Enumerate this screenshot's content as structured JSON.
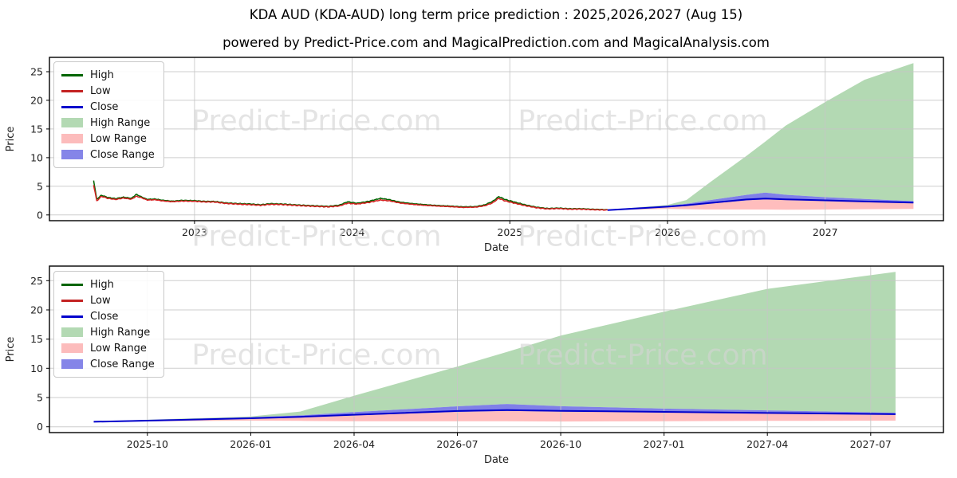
{
  "page": {
    "title": "KDA AUD (KDA-AUD) long term price prediction : 2025,2026,2027 (Aug 15)",
    "subtitle": "powered by Predict-Price.com and MagicalPrediction.com and MagicalAnalysis.com",
    "watermark": "Predict-Price.com"
  },
  "legend": {
    "items": [
      {
        "label": "High",
        "kind": "line",
        "color": "#006400"
      },
      {
        "label": "Low",
        "kind": "line",
        "color": "#c32222"
      },
      {
        "label": "Close",
        "kind": "line",
        "color": "#0000cc"
      },
      {
        "label": "High Range",
        "kind": "patch",
        "color": "#b3d9b3"
      },
      {
        "label": "Low Range",
        "kind": "patch",
        "color": "#fcbcbc"
      },
      {
        "label": "Close Range",
        "kind": "patch",
        "color": "#8585e8"
      }
    ]
  },
  "chart_data": {
    "colors": {
      "high_line": "#006400",
      "low_line": "#d42020",
      "close_line": "#0000cc",
      "high_range": "#b3d9b3",
      "low_range": "#ffbdbd",
      "close_range": "#8080e8",
      "grid": "#c6c6c6",
      "spine": "#000000",
      "tick_text": "#1f1f1f"
    },
    "history": {
      "t": [
        2022.36,
        2022.38,
        2022.41,
        2022.45,
        2022.5,
        2022.55,
        2022.6,
        2022.63,
        2022.66,
        2022.7,
        2022.75,
        2022.8,
        2022.86,
        2022.92,
        2023.0,
        2023.06,
        2023.13,
        2023.2,
        2023.28,
        2023.35,
        2023.42,
        2023.48,
        2023.55,
        2023.62,
        2023.7,
        2023.78,
        2023.85,
        2023.92,
        2023.97,
        2024.03,
        2024.1,
        2024.18,
        2024.24,
        2024.3,
        2024.38,
        2024.46,
        2024.54,
        2024.62,
        2024.7,
        2024.78,
        2024.84,
        2024.89,
        2024.93,
        2024.97,
        2025.03,
        2025.1,
        2025.17,
        2025.24,
        2025.31,
        2025.38,
        2025.45,
        2025.52,
        2025.58,
        2025.62
      ],
      "low": [
        5.3,
        2.45,
        3.25,
        2.9,
        2.7,
        2.95,
        2.75,
        3.25,
        3.05,
        2.6,
        2.65,
        2.45,
        2.3,
        2.42,
        2.38,
        2.28,
        2.25,
        2.0,
        1.88,
        1.8,
        1.68,
        1.85,
        1.82,
        1.7,
        1.58,
        1.48,
        1.4,
        1.58,
        2.05,
        1.9,
        2.15,
        2.6,
        2.45,
        2.1,
        1.85,
        1.68,
        1.55,
        1.45,
        1.32,
        1.35,
        1.6,
        2.1,
        2.9,
        2.45,
        2.05,
        1.6,
        1.25,
        1.05,
        1.12,
        1.0,
        1.02,
        0.92,
        0.88,
        0.85
      ],
      "high": [
        6.1,
        2.75,
        3.45,
        3.05,
        2.85,
        3.1,
        2.9,
        3.6,
        3.2,
        2.72,
        2.78,
        2.56,
        2.4,
        2.55,
        2.5,
        2.38,
        2.35,
        2.1,
        1.98,
        1.92,
        1.78,
        1.97,
        1.92,
        1.8,
        1.68,
        1.58,
        1.5,
        1.72,
        2.3,
        2.05,
        2.35,
        2.9,
        2.65,
        2.25,
        1.98,
        1.8,
        1.65,
        1.55,
        1.42,
        1.45,
        1.75,
        2.35,
        3.2,
        2.7,
        2.25,
        1.75,
        1.35,
        1.13,
        1.2,
        1.08,
        1.1,
        1.0,
        0.95,
        0.9
      ]
    },
    "forecast": {
      "t": [
        2025.62,
        2025.75,
        2026.0,
        2026.12,
        2026.25,
        2026.5,
        2026.62,
        2026.75,
        2027.0,
        2027.25,
        2027.56
      ],
      "close": [
        0.85,
        1.05,
        1.45,
        1.7,
        2.05,
        2.7,
        2.85,
        2.72,
        2.55,
        2.35,
        2.15
      ],
      "close_upper": [
        0.88,
        1.15,
        1.62,
        1.95,
        2.5,
        3.5,
        3.9,
        3.52,
        3.1,
        2.8,
        2.4
      ],
      "close_lower": [
        0.82,
        1.0,
        1.38,
        1.62,
        1.95,
        2.55,
        2.7,
        2.62,
        2.45,
        2.28,
        2.08
      ],
      "high_upper": [
        0.9,
        1.2,
        1.75,
        2.6,
        5.3,
        10.3,
        12.8,
        15.6,
        19.7,
        23.6,
        26.5
      ],
      "low_lower": [
        0.8,
        0.92,
        1.05,
        1.0,
        0.95,
        0.95,
        0.95,
        0.9,
        0.95,
        1.0,
        1.05
      ]
    },
    "charts": [
      {
        "name": "price-chart-full-history",
        "type": "line",
        "xlabel": "Date",
        "ylabel": "Price",
        "xlim": [
          2022.08,
          2027.75
        ],
        "ylim": [
          -1.0,
          27.5
        ],
        "yticks": [
          0,
          5,
          10,
          15,
          20,
          25
        ],
        "xticks": [
          {
            "v": 2023,
            "label": "2023"
          },
          {
            "v": 2024,
            "label": "2024"
          },
          {
            "v": 2025,
            "label": "2025"
          },
          {
            "v": 2026,
            "label": "2026"
          },
          {
            "v": 2027,
            "label": "2027"
          }
        ],
        "grid": true,
        "legend_position": "upper left",
        "show_history": true,
        "series": [
          {
            "name": "High",
            "type": "line",
            "data": "history.high"
          },
          {
            "name": "Low",
            "type": "line",
            "data": "history.low"
          },
          {
            "name": "Close",
            "type": "line",
            "data": "forecast.close"
          },
          {
            "name": "High Range",
            "type": "band",
            "data": "forecast.high_upper/close_upper"
          },
          {
            "name": "Low Range",
            "type": "band",
            "data": "forecast.close/low_lower"
          },
          {
            "name": "Close Range",
            "type": "band",
            "data": "forecast.close_upper/close_lower"
          }
        ]
      },
      {
        "name": "price-chart-forecast-zoom",
        "type": "line",
        "xlabel": "Date",
        "ylabel": "Price",
        "xlim": [
          2025.513,
          2027.676
        ],
        "ylim": [
          -1.0,
          27.5
        ],
        "yticks": [
          0,
          5,
          10,
          15,
          20,
          25
        ],
        "xticks": [
          {
            "v": 2025.75,
            "label": "2025-10"
          },
          {
            "v": 2026.0,
            "label": "2026-01"
          },
          {
            "v": 2026.25,
            "label": "2026-04"
          },
          {
            "v": 2026.5,
            "label": "2026-07"
          },
          {
            "v": 2026.75,
            "label": "2026-10"
          },
          {
            "v": 2027.0,
            "label": "2027-01"
          },
          {
            "v": 2027.25,
            "label": "2027-04"
          },
          {
            "v": 2027.5,
            "label": "2027-07"
          }
        ],
        "grid": true,
        "legend_position": "upper left",
        "show_history": false,
        "series": [
          {
            "name": "Close",
            "type": "line",
            "data": "forecast.close"
          },
          {
            "name": "High Range",
            "type": "band",
            "data": "forecast.high_upper/close_upper"
          },
          {
            "name": "Low Range",
            "type": "band",
            "data": "forecast.close/low_lower"
          },
          {
            "name": "Close Range",
            "type": "band",
            "data": "forecast.close_upper/close_lower"
          }
        ]
      }
    ]
  }
}
